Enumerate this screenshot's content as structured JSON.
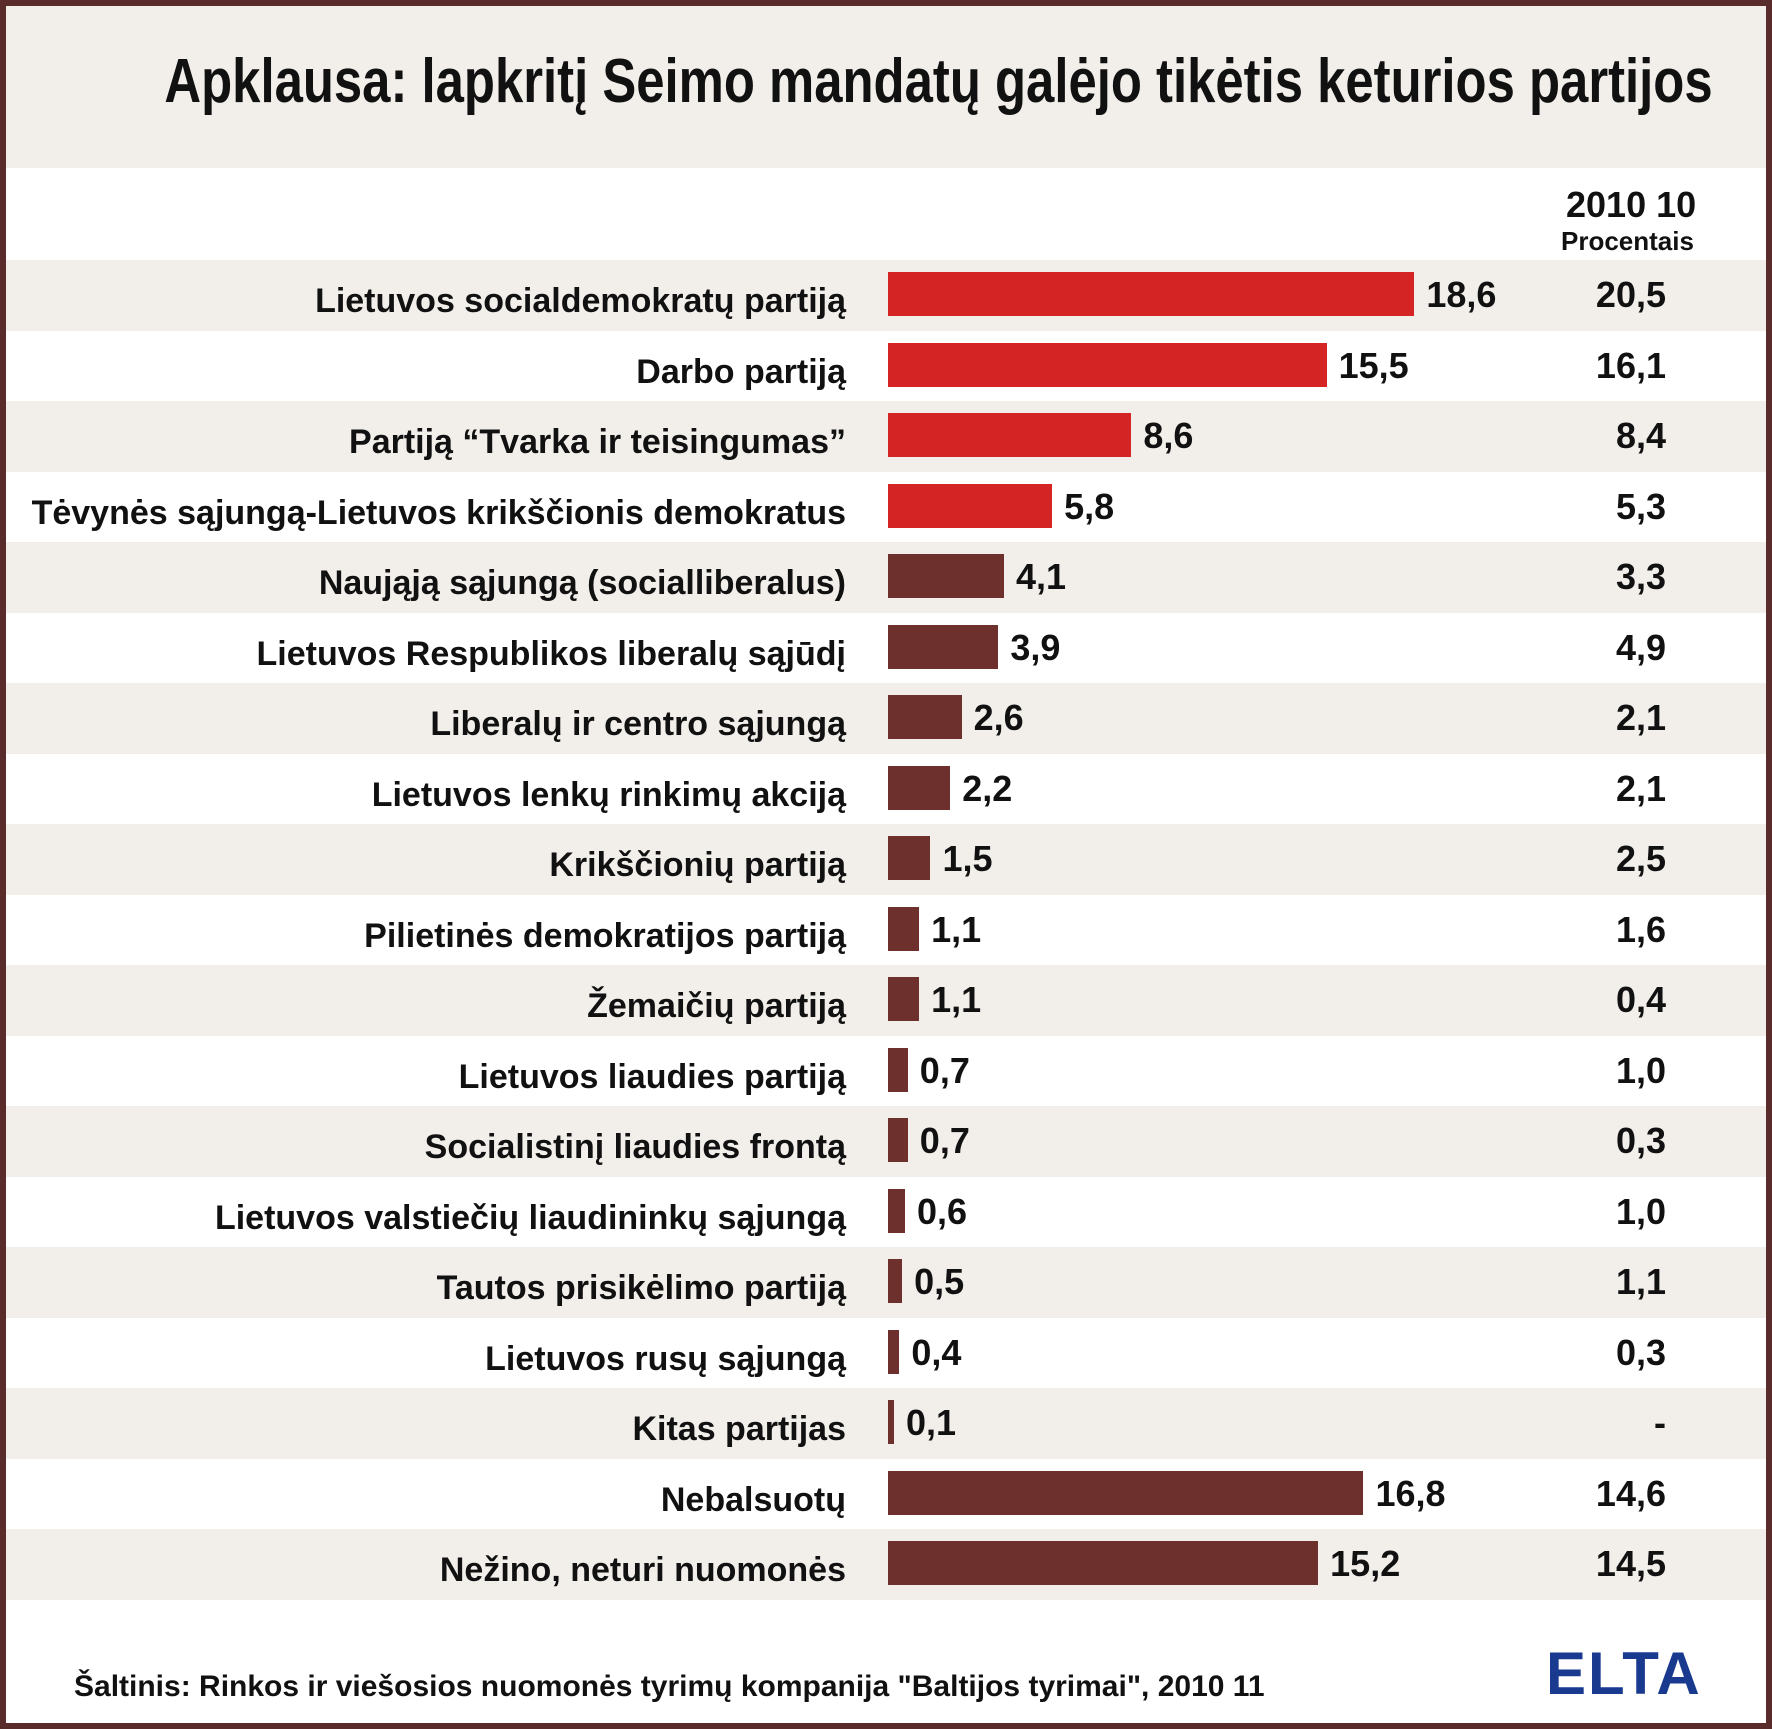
{
  "title": "Apklausa: lapkritį Seimo mandatų galėjo tikėtis keturios partijos",
  "column_header": {
    "date": "2010 10",
    "unit": "Procentais"
  },
  "source": "Šaltinis: Rinkos ir viešosios nuomonės tyrimų kompanija \"Baltijos tyrimai\", 2010 11",
  "logo": "ELTA",
  "colors": {
    "highlight_bar": "#d42424",
    "other_bar": "#6d302c",
    "frame": "#5a2b2b",
    "band": "#f2efeb",
    "logo": "#1a3a8f"
  },
  "chart_data": {
    "type": "bar",
    "orientation": "horizontal",
    "categories": [
      "Lietuvos socialdemokratų partiją",
      "Darbo partiją",
      "Partiją “Tvarka ir teisingumas”",
      "Tėvynės sąjungą-Lietuvos krikščionis demokratus",
      "Naująją sąjungą (socialliberalus)",
      "Lietuvos Respublikos liberalų sąjūdį",
      "Liberalų ir centro sąjungą",
      "Lietuvos lenkų rinkimų akciją",
      "Krikščionių partiją",
      "Pilietinės demokratijos partiją",
      "Žemaičių partiją",
      "Lietuvos liaudies partiją",
      "Socialistinį liaudies frontą",
      "Lietuvos valstiečių liaudininkų sąjungą",
      "Tautos prisikėlimo partiją",
      "Lietuvos rusų sąjungą",
      "Kitas partijas",
      "Nebalsuotų",
      "Nežino, neturi nuomonės"
    ],
    "values": [
      18.6,
      15.5,
      8.6,
      5.8,
      4.1,
      3.9,
      2.6,
      2.2,
      1.5,
      1.1,
      1.1,
      0.7,
      0.7,
      0.6,
      0.5,
      0.4,
      0.1,
      16.8,
      15.2
    ],
    "value_labels": [
      "18,6",
      "15,5",
      "8,6",
      "5,8",
      "4,1",
      "3,9",
      "2,6",
      "2,2",
      "1,5",
      "1,1",
      "1,1",
      "0,7",
      "0,7",
      "0,6",
      "0,5",
      "0,4",
      "0,1",
      "16,8",
      "15,2"
    ],
    "previous_labels": [
      "20,5",
      "16,1",
      "8,4",
      "5,3",
      "3,3",
      "4,9",
      "2,1",
      "2,1",
      "2,5",
      "1,6",
      "0,4",
      "1,0",
      "0,3",
      "1,0",
      "1,1",
      "0,3",
      "-",
      "14,6",
      "14,5"
    ],
    "highlighted_count": 4,
    "xlim": [
      0,
      20
    ]
  }
}
